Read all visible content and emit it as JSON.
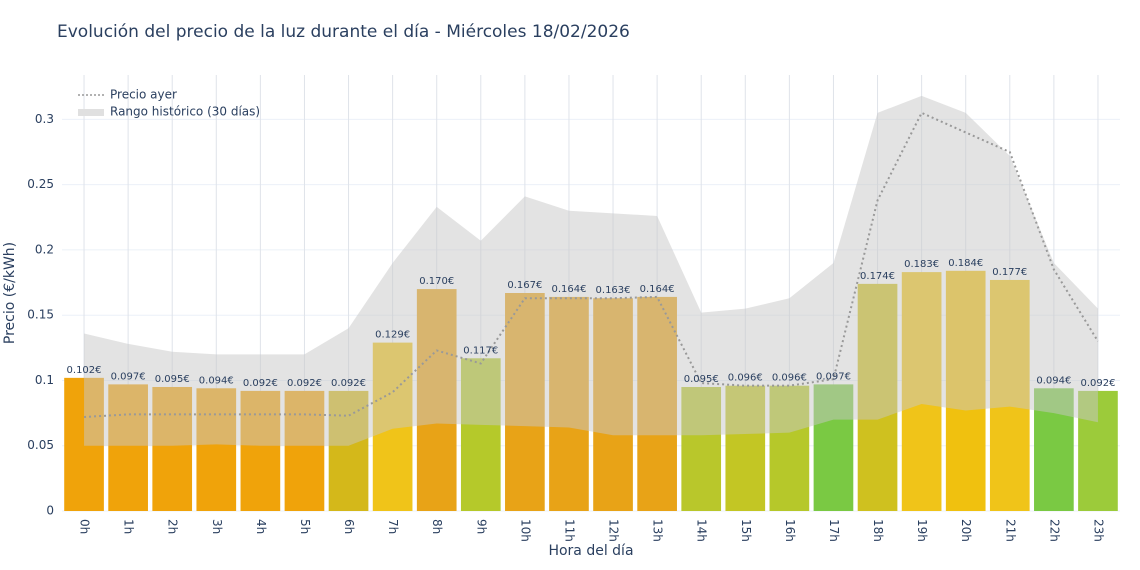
{
  "chart_data": {
    "type": "bar",
    "title": "Evolución del precio de la luz durante el día - Miércoles 18/02/2026",
    "x_label": "Hora del día",
    "y_label": "Precio (€/kWh)",
    "categories": [
      "0h",
      "1h",
      "2h",
      "3h",
      "4h",
      "5h",
      "6h",
      "7h",
      "8h",
      "9h",
      "10h",
      "11h",
      "12h",
      "13h",
      "14h",
      "15h",
      "16h",
      "17h",
      "18h",
      "19h",
      "20h",
      "21h",
      "22h",
      "23h"
    ],
    "values": [
      0.102,
      0.097,
      0.095,
      0.094,
      0.092,
      0.092,
      0.092,
      0.129,
      0.17,
      0.117,
      0.167,
      0.164,
      0.163,
      0.164,
      0.095,
      0.096,
      0.096,
      0.097,
      0.174,
      0.183,
      0.184,
      0.177,
      0.094,
      0.092
    ],
    "value_labels": [
      "0.102€",
      "0.097€",
      "0.095€",
      "0.094€",
      "0.092€",
      "0.092€",
      "0.092€",
      "0.129€",
      "0.170€",
      "0.117€",
      "0.167€",
      "0.164€",
      "0.163€",
      "0.164€",
      "0.095€",
      "0.096€",
      "0.096€",
      "0.097€",
      "0.174€",
      "0.183€",
      "0.184€",
      "0.177€",
      "0.094€",
      "0.092€"
    ],
    "colors": [
      "#f0a30a",
      "#f0a30a",
      "#f0a30a",
      "#f0a30a",
      "#f0a30a",
      "#f0a30a",
      "#d4b81a",
      "#f0c419",
      "#e8a317",
      "#b5c92a",
      "#e8a317",
      "#e8a317",
      "#e8a317",
      "#e8a317",
      "#b9c72b",
      "#c3c624",
      "#b6c82a",
      "#7ac943",
      "#cfc11f",
      "#f0c419",
      "#f0c10f",
      "#f0c419",
      "#7ac943",
      "#9ccb3a"
    ],
    "line": {
      "name": "Precio ayer",
      "color": "#999999",
      "values": [
        0.072,
        0.074,
        0.074,
        0.074,
        0.074,
        0.074,
        0.073,
        0.091,
        0.123,
        0.113,
        0.163,
        0.163,
        0.163,
        0.164,
        0.098,
        0.096,
        0.096,
        0.101,
        0.238,
        0.305,
        0.29,
        0.275,
        0.185,
        0.13
      ]
    },
    "band": {
      "name": "Rango histórico (30 días)",
      "color": "rgba(200,200,200,0.5)",
      "upper": [
        0.136,
        0.128,
        0.122,
        0.12,
        0.12,
        0.12,
        0.14,
        0.19,
        0.233,
        0.207,
        0.241,
        0.23,
        0.228,
        0.226,
        0.152,
        0.155,
        0.163,
        0.19,
        0.305,
        0.318,
        0.305,
        0.272,
        0.19,
        0.155
      ],
      "lower": [
        0.05,
        0.05,
        0.05,
        0.051,
        0.05,
        0.05,
        0.05,
        0.063,
        0.067,
        0.066,
        0.065,
        0.064,
        0.058,
        0.058,
        0.058,
        0.059,
        0.06,
        0.07,
        0.07,
        0.082,
        0.077,
        0.08,
        0.075,
        0.068
      ]
    },
    "ylim": [
      0,
      0.334
    ],
    "yticks": [
      0,
      0.05,
      0.1,
      0.15,
      0.2,
      0.25,
      0.3
    ],
    "grid": true,
    "legend": "top-left"
  }
}
